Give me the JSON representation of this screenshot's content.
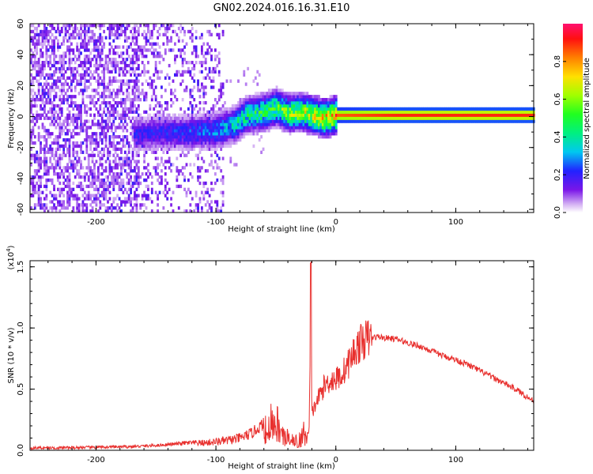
{
  "chart_data": [
    {
      "type": "heatmap",
      "title": "GN02.2024.016.16.31.E10",
      "xlabel": "Height of straight line (km)",
      "ylabel": "Frequency (Hz)",
      "xlim": [
        -255,
        165
      ],
      "ylim": [
        -62,
        60
      ],
      "x_ticks": [
        "-200",
        "-100",
        "0",
        "100"
      ],
      "y_ticks": [
        "60",
        "40",
        "20",
        "0",
        "-20",
        "-40",
        "-60"
      ],
      "colorbar": {
        "label": "Normalized spectral amplitude",
        "range": [
          0,
          1
        ],
        "ticks": [
          "0.0",
          "0.2",
          "0.4",
          "0.6",
          "0.8"
        ]
      },
      "description_points": {
        "ridge_x": [
          -160,
          -140,
          -120,
          -100,
          -85,
          -75,
          -60,
          -50,
          -40,
          -30,
          -20,
          -10,
          0,
          50,
          100,
          165
        ],
        "ridge_freq": [
          -12,
          -11,
          -11,
          -10,
          -6,
          0,
          2,
          5,
          1,
          2,
          0,
          -2,
          0,
          0,
          0,
          0
        ],
        "ridge_amplitude": [
          0.2,
          0.22,
          0.25,
          0.3,
          0.4,
          0.45,
          0.5,
          0.55,
          0.6,
          0.65,
          0.7,
          0.75,
          0.85,
          0.9,
          0.9,
          0.9
        ]
      }
    },
    {
      "type": "line",
      "title": "",
      "xlabel": "Height of straight line (km)",
      "ylabel": "SNR (10 * v/v)",
      "y_multiplier": "(x10",
      "y_multiplier_exp": "4",
      "y_multiplier_close": ")",
      "xlim": [
        -255,
        165
      ],
      "ylim": [
        0,
        1.55
      ],
      "x_ticks": [
        "-200",
        "-100",
        "0",
        "100"
      ],
      "y_ticks": [
        "0.0",
        "0.5",
        "1.0",
        "1.5"
      ],
      "series": [
        {
          "name": "SNR",
          "color": "#e8302e",
          "x": [
            -255,
            -230,
            -200,
            -170,
            -150,
            -135,
            -125,
            -110,
            -100,
            -90,
            -80,
            -70,
            -60,
            -55,
            -50,
            -45,
            -40,
            -35,
            -30,
            -25,
            -22,
            -21,
            -20,
            -15,
            -10,
            -5,
            0,
            5,
            10,
            15,
            20,
            25,
            30,
            35,
            40,
            50,
            60,
            70,
            80,
            90,
            100,
            110,
            120,
            130,
            140,
            150,
            165
          ],
          "y": [
            0.02,
            0.02,
            0.025,
            0.03,
            0.04,
            0.05,
            0.06,
            0.06,
            0.07,
            0.08,
            0.1,
            0.14,
            0.22,
            0.26,
            0.27,
            0.2,
            0.12,
            0.08,
            0.1,
            0.18,
            0.28,
            1.53,
            0.3,
            0.42,
            0.52,
            0.57,
            0.58,
            0.62,
            0.7,
            0.8,
            0.87,
            0.91,
            0.92,
            0.93,
            0.92,
            0.91,
            0.88,
            0.85,
            0.81,
            0.77,
            0.74,
            0.7,
            0.65,
            0.6,
            0.55,
            0.5,
            0.4
          ]
        }
      ]
    }
  ]
}
